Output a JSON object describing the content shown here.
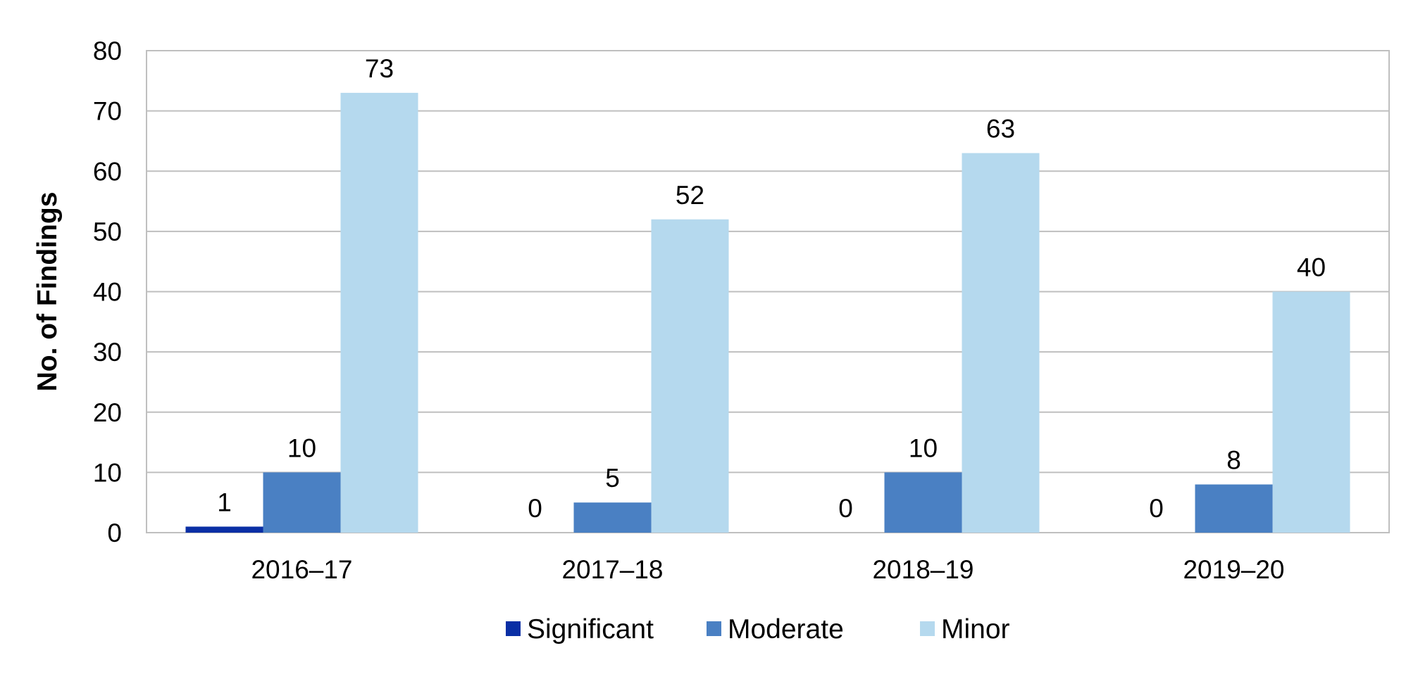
{
  "chart_data": {
    "type": "bar",
    "categories": [
      "2016–17",
      "2017–18",
      "2018–19",
      "2019–20"
    ],
    "series": [
      {
        "name": "Significant",
        "color": "#0a2fa5",
        "values": [
          1,
          0,
          0,
          0
        ]
      },
      {
        "name": "Moderate",
        "color": "#4a80c3",
        "values": [
          10,
          5,
          10,
          8
        ]
      },
      {
        "name": "Minor",
        "color": "#b5d9ee",
        "values": [
          73,
          52,
          63,
          40
        ]
      }
    ],
    "ylabel": "No. of Findings",
    "ylim": [
      0,
      80
    ],
    "yticks": [
      0,
      10,
      20,
      30,
      40,
      50,
      60,
      70,
      80
    ],
    "grid": true,
    "legend": "bottom",
    "data_labels": true
  }
}
